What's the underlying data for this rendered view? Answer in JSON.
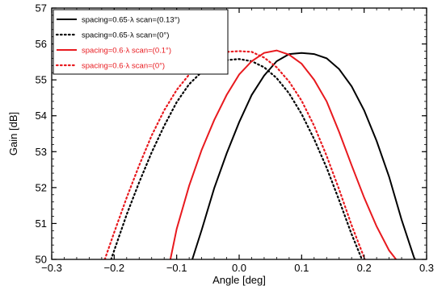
{
  "chart_data": {
    "type": "line",
    "title": "",
    "xlabel": "Angle [deg]",
    "ylabel": "Gain [dB]",
    "xlim": [
      -0.3,
      0.3
    ],
    "ylim": [
      50,
      57
    ],
    "xticks": [
      -0.3,
      -0.2,
      -0.1,
      0.0,
      0.1,
      0.2,
      0.3
    ],
    "xtick_labels": [
      "−0.3",
      "−0.2",
      "−0.1",
      "0.0",
      "0.1",
      "0.2",
      "0.3"
    ],
    "yticks": [
      50,
      51,
      52,
      53,
      54,
      55,
      56,
      57
    ],
    "ytick_labels": [
      "50",
      "51",
      "52",
      "53",
      "54",
      "55",
      "56",
      "57"
    ],
    "grid": false,
    "legend_position": "top-left",
    "series": [
      {
        "name": "spacing=0.65·λ scan=(0.13°)",
        "color": "#000000",
        "style": "solid",
        "x": [
          -0.075,
          -0.06,
          -0.04,
          -0.02,
          0.0,
          0.02,
          0.04,
          0.06,
          0.08,
          0.1,
          0.12,
          0.14,
          0.16,
          0.18,
          0.2,
          0.22,
          0.24,
          0.26,
          0.28,
          0.287
        ],
        "y": [
          50.0,
          50.82,
          51.98,
          52.95,
          53.82,
          54.58,
          55.12,
          55.52,
          55.72,
          55.75,
          55.72,
          55.6,
          55.3,
          54.82,
          54.15,
          53.3,
          52.3,
          51.1,
          50.05,
          49.85
        ]
      },
      {
        "name": "spacing=0.65·λ scan=(0°)",
        "color": "#000000",
        "style": "dotted",
        "x": [
          -0.205,
          -0.18,
          -0.16,
          -0.14,
          -0.12,
          -0.1,
          -0.08,
          -0.06,
          -0.04,
          -0.02,
          0.0,
          0.02,
          0.04,
          0.06,
          0.08,
          0.1,
          0.12,
          0.14,
          0.16,
          0.18,
          0.2,
          0.21
        ],
        "y": [
          50.0,
          51.25,
          52.15,
          52.98,
          53.72,
          54.38,
          54.88,
          55.22,
          55.45,
          55.55,
          55.58,
          55.52,
          55.35,
          55.05,
          54.62,
          54.05,
          53.35,
          52.55,
          51.65,
          50.7,
          49.85,
          49.45
        ]
      },
      {
        "name": "spacing=0.6·λ scan=(0.1°)",
        "color": "#e8191e",
        "style": "solid",
        "x": [
          -0.11,
          -0.1,
          -0.08,
          -0.06,
          -0.04,
          -0.02,
          0.0,
          0.02,
          0.04,
          0.06,
          0.08,
          0.1,
          0.12,
          0.14,
          0.16,
          0.18,
          0.2,
          0.22,
          0.24,
          0.26
        ],
        "y": [
          50.0,
          50.85,
          52.05,
          53.05,
          53.88,
          54.58,
          55.15,
          55.52,
          55.75,
          55.82,
          55.7,
          55.45,
          55.0,
          54.4,
          53.55,
          52.62,
          51.72,
          50.92,
          50.25,
          49.8
        ]
      },
      {
        "name": "spacing=0.6·λ scan=(0°)",
        "color": "#e8191e",
        "style": "dotted",
        "x": [
          -0.215,
          -0.2,
          -0.18,
          -0.16,
          -0.14,
          -0.12,
          -0.1,
          -0.08,
          -0.06,
          -0.04,
          -0.02,
          0.0,
          0.02,
          0.04,
          0.06,
          0.08,
          0.1,
          0.12,
          0.14,
          0.16,
          0.18,
          0.2,
          0.21
        ],
        "y": [
          50.0,
          50.75,
          51.72,
          52.62,
          53.45,
          54.15,
          54.72,
          55.15,
          55.48,
          55.68,
          55.78,
          55.8,
          55.78,
          55.62,
          55.35,
          54.95,
          54.42,
          53.72,
          52.88,
          51.95,
          50.95,
          50.05,
          49.62
        ]
      }
    ]
  }
}
